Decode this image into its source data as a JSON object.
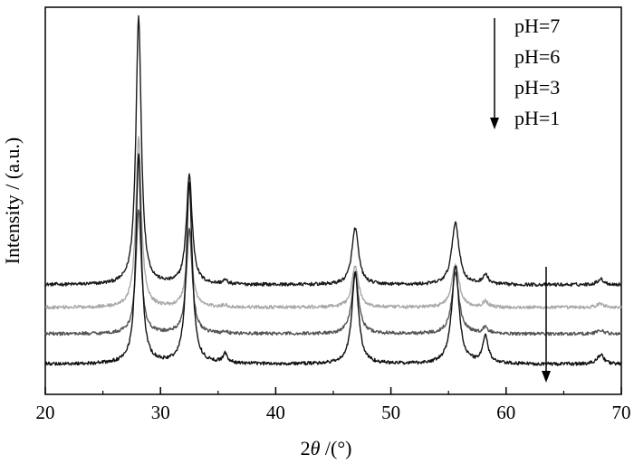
{
  "chart_data": {
    "type": "line",
    "title": "",
    "xlabel_parts": [
      "2",
      "θ",
      " /(°)"
    ],
    "ylabel": "Intensity / (a.u.)",
    "xlim": [
      20,
      70
    ],
    "x_ticks": [
      20,
      30,
      40,
      50,
      60,
      70
    ],
    "x_tick_labels": [
      "20",
      "30",
      "40",
      "50",
      "60",
      "70"
    ],
    "y_ticks_visible": false,
    "grid": false,
    "legend": {
      "placement": "top-right",
      "entries": [
        "pH=7",
        "pH=6",
        "pH=3",
        "pH=1"
      ],
      "arrow_direction": "down"
    },
    "peaks_deg": [
      28.1,
      32.5,
      35.6,
      46.9,
      55.6,
      58.2,
      68.2
    ],
    "series": [
      {
        "name": "pH=7",
        "color": "#1a1a1a",
        "baseline": 0.58,
        "peak_heights": [
          1.42,
          0.58,
          0.02,
          0.3,
          0.33,
          0.05,
          0.03
        ]
      },
      {
        "name": "pH=6",
        "color": "#a8a8a8",
        "baseline": 0.46,
        "peak_heights": [
          0.9,
          0.4,
          0.01,
          0.22,
          0.23,
          0.03,
          0.02
        ]
      },
      {
        "name": "pH=3",
        "color": "#555555",
        "baseline": 0.32,
        "peak_heights": [
          0.65,
          0.55,
          0.01,
          0.33,
          0.32,
          0.03,
          0.02
        ]
      },
      {
        "name": "pH=1",
        "color": "#111111",
        "baseline": 0.16,
        "peak_heights": [
          1.1,
          0.96,
          0.05,
          0.48,
          0.52,
          0.14,
          0.05
        ]
      }
    ],
    "ylim": [
      0,
      2.05
    ]
  }
}
